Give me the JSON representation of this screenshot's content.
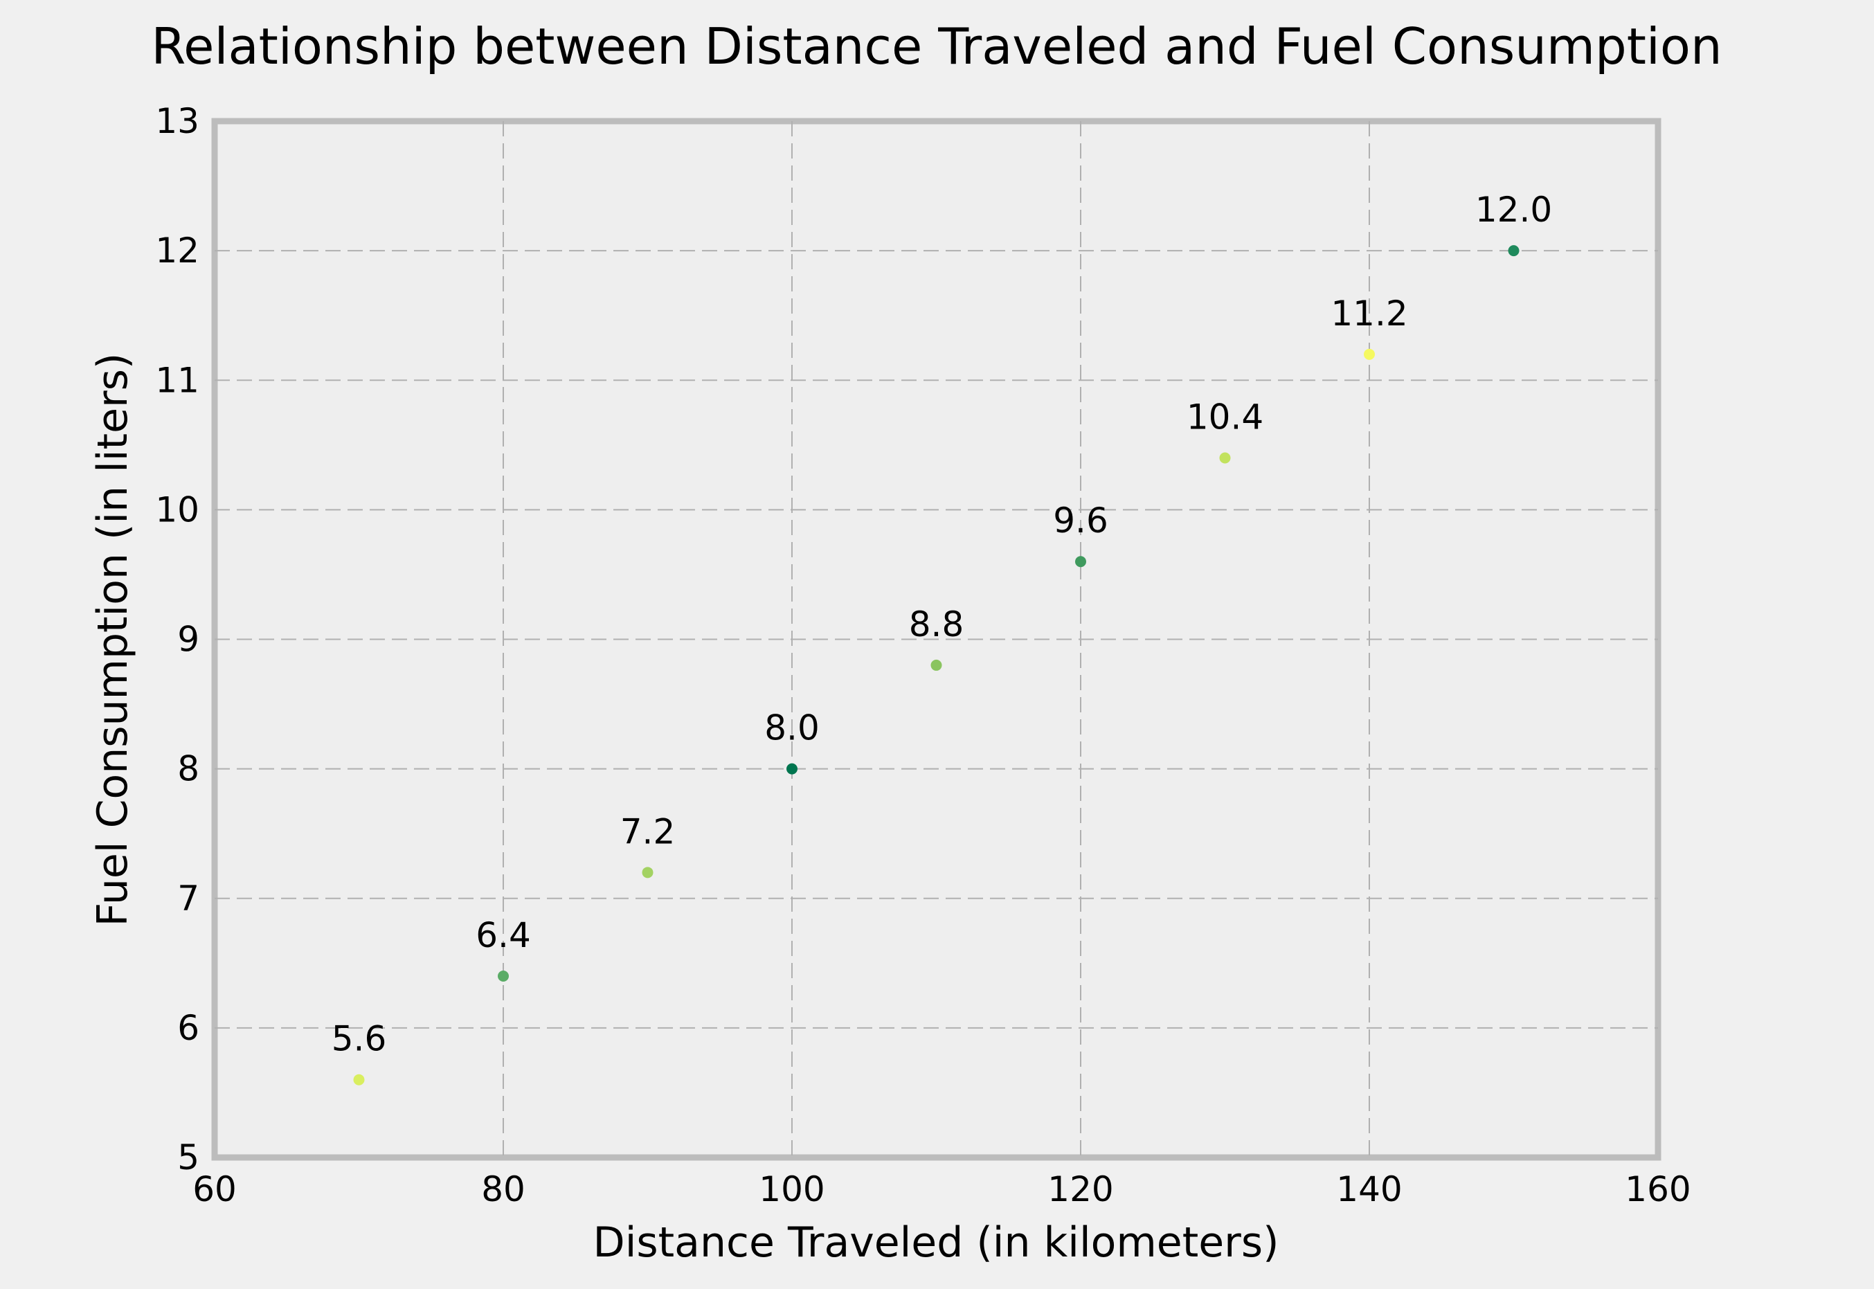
{
  "chart_data": {
    "type": "scatter",
    "title": "Relationship between Distance Traveled and Fuel Consumption",
    "xlabel": "Distance Traveled (in kilometers)",
    "ylabel": "Fuel Consumption (in liters)",
    "xlim": [
      60,
      160
    ],
    "ylim": [
      5,
      13
    ],
    "xticks": [
      60,
      80,
      100,
      120,
      140,
      160
    ],
    "yticks": [
      5,
      6,
      7,
      8,
      9,
      10,
      11,
      12,
      13
    ],
    "grid": true,
    "points": [
      {
        "x": 70,
        "y": 5.6,
        "label": "5.6",
        "color": "#d9ee5f"
      },
      {
        "x": 80,
        "y": 6.4,
        "label": "6.4",
        "color": "#5aac66"
      },
      {
        "x": 90,
        "y": 7.2,
        "label": "7.2",
        "color": "#a3d262"
      },
      {
        "x": 100,
        "y": 8.0,
        "label": "8.0",
        "color": "#00754f"
      },
      {
        "x": 110,
        "y": 8.8,
        "label": "8.8",
        "color": "#8ac45f"
      },
      {
        "x": 120,
        "y": 9.6,
        "label": "9.6",
        "color": "#3f9a5e"
      },
      {
        "x": 130,
        "y": 10.4,
        "label": "10.4",
        "color": "#c2e25e"
      },
      {
        "x": 140,
        "y": 11.2,
        "label": "11.2",
        "color": "#f5f960"
      },
      {
        "x": 150,
        "y": 12.0,
        "label": "12.0",
        "color": "#1f8a5c"
      }
    ]
  }
}
